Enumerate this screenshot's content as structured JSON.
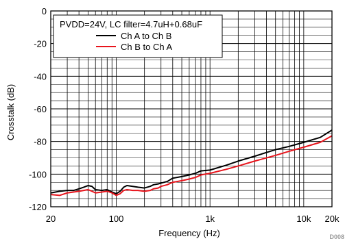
{
  "chart_data": {
    "type": "line",
    "title": "",
    "xlabel": "Frequency (Hz)",
    "ylabel": "Crosstalk (dB)",
    "xscale": "log",
    "xlim": [
      20,
      20000
    ],
    "ylim": [
      -120,
      0
    ],
    "grid": true,
    "xtick_values": [
      20,
      100,
      1000,
      10000,
      20000
    ],
    "xtick_labels": [
      "20",
      "100",
      "1k",
      "10k",
      "20k"
    ],
    "ytick_values": [
      0,
      -20,
      -40,
      -60,
      -80,
      -100,
      -120
    ],
    "ytick_labels": [
      "0",
      "-20",
      "-40",
      "-60",
      "-80",
      "-100",
      "-120"
    ],
    "legend_title": "PVDD=24V, LC filter=4.7uH+0.68uF",
    "legend_position": "top-left",
    "series": [
      {
        "name": "Ch A to Ch B",
        "color": "#000000",
        "x": [
          20,
          25,
          30,
          35,
          40,
          45,
          50,
          55,
          60,
          70,
          80,
          90,
          100,
          110,
          120,
          130,
          150,
          170,
          200,
          230,
          250,
          280,
          300,
          350,
          400,
          500,
          600,
          700,
          800,
          1000,
          1500,
          2000,
          3000,
          5000,
          7000,
          10000,
          15000,
          20000
        ],
        "y": [
          -111.5,
          -110.5,
          -110.0,
          -110.0,
          -109.0,
          -108.0,
          -107.0,
          -107.5,
          -109.5,
          -110.0,
          -109.5,
          -111.0,
          -112.0,
          -110.5,
          -108.0,
          -107.0,
          -107.5,
          -108.0,
          -108.5,
          -107.5,
          -106.5,
          -106.0,
          -105.5,
          -104.5,
          -102.5,
          -101.5,
          -100.5,
          -99.5,
          -98.0,
          -97.5,
          -94.5,
          -92.0,
          -89.0,
          -85.0,
          -83.0,
          -80.5,
          -77.5,
          -73.0
        ]
      },
      {
        "name": "Ch B to Ch A",
        "color": "#e8141c",
        "x": [
          20,
          25,
          30,
          35,
          40,
          45,
          50,
          55,
          60,
          70,
          80,
          90,
          100,
          110,
          120,
          130,
          150,
          170,
          200,
          230,
          250,
          280,
          300,
          350,
          400,
          500,
          600,
          700,
          800,
          1000,
          1500,
          2000,
          3000,
          5000,
          7000,
          10000,
          15000,
          20000
        ],
        "y": [
          -112.5,
          -113.0,
          -111.5,
          -111.0,
          -110.5,
          -110.0,
          -109.5,
          -110.5,
          -111.5,
          -111.0,
          -110.5,
          -111.5,
          -113.0,
          -112.0,
          -110.0,
          -109.5,
          -110.0,
          -110.0,
          -110.5,
          -110.0,
          -109.0,
          -108.5,
          -107.5,
          -106.5,
          -105.0,
          -104.0,
          -103.0,
          -102.0,
          -100.5,
          -99.5,
          -97.0,
          -95.0,
          -92.0,
          -88.5,
          -86.0,
          -83.5,
          -80.5,
          -76.5
        ]
      }
    ],
    "figure_id": "D008"
  }
}
